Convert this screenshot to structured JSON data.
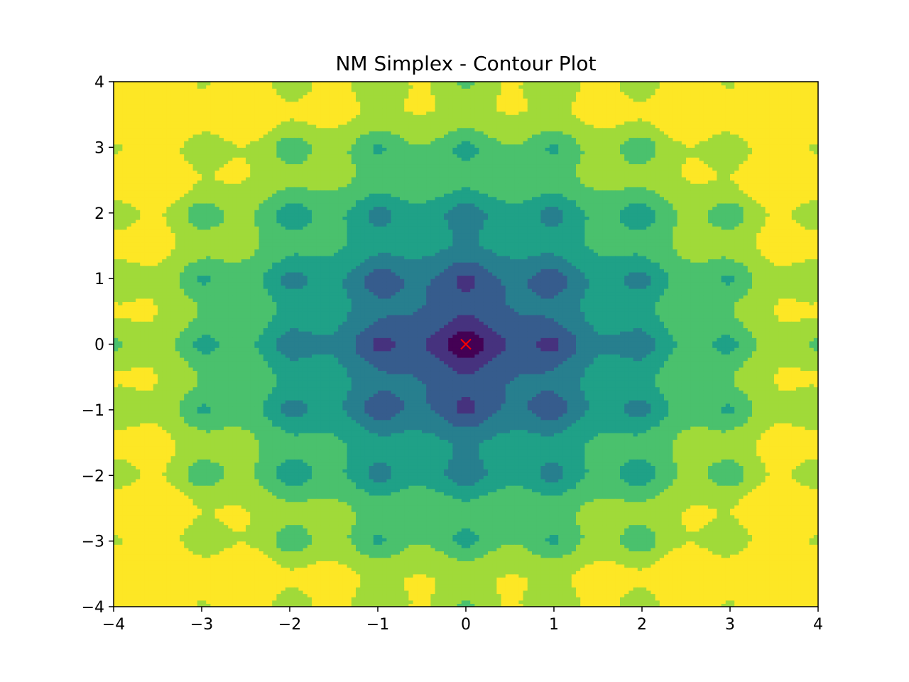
{
  "chart_data": {
    "type": "contour",
    "title": "NM Simplex - Contour Plot",
    "xlabel": "",
    "ylabel": "",
    "xlim": [
      -4,
      4
    ],
    "ylim": [
      -4,
      4
    ],
    "x_ticks": [
      -4,
      -3,
      -2,
      -1,
      0,
      1,
      2,
      3,
      4
    ],
    "y_ticks": [
      -4,
      -3,
      -2,
      -1,
      0,
      1,
      2,
      3,
      4
    ],
    "x_tick_labels": [
      "−4",
      "−3",
      "−2",
      "−1",
      "0",
      "1",
      "2",
      "3",
      "4"
    ],
    "y_tick_labels": [
      "−4",
      "−3",
      "−2",
      "−1",
      "0",
      "1",
      "2",
      "3",
      "4"
    ],
    "grid": false,
    "colormap": "viridis",
    "level_colors": [
      "#440154",
      "#46327e",
      "#365c8d",
      "#277f8e",
      "#1fa187",
      "#4ac16d",
      "#a0da39",
      "#fde725"
    ],
    "marker": {
      "x": 0,
      "y": 0,
      "symbol": "x",
      "color": "#ff0000"
    }
  }
}
